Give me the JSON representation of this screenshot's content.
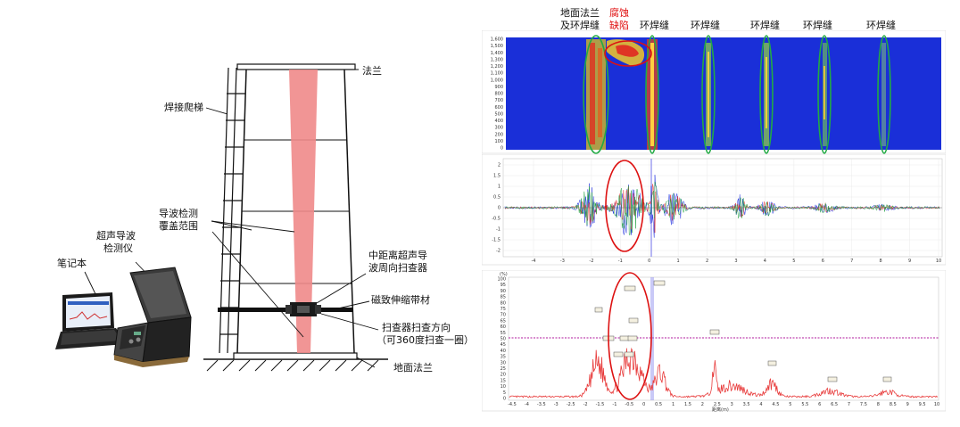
{
  "left_diagram": {
    "labels": {
      "flange_top": "法兰",
      "ladder": "焊接爬梯",
      "coverage_1": "导波检测",
      "coverage_2": "覆盖范围",
      "scanner_1": "中距离超声导",
      "scanner_2": "波周向扫查器",
      "strip": "磁致伸缩带材",
      "direction_1": "扫查器扫查方向",
      "direction_2": "（可360度扫查一圈）",
      "ground_flange": "地面法兰",
      "laptop": "笔记本",
      "instrument_1": "超声导波",
      "instrument_2": "检测仪"
    }
  },
  "right_panel": {
    "top_labels": {
      "ground_flange_1": "地面法兰",
      "ground_flange_2": "及环焊缝",
      "corrosion_1": "腐蚀",
      "corrosion_2": "缺陷",
      "weld_1": "环焊缝",
      "weld_2": "环焊缝",
      "weld_3": "环焊缝",
      "weld_4": "环焊缝",
      "weld_5": "环焊缝"
    },
    "heatmap": {
      "y_ticks": [
        "1,600",
        "1,500",
        "1,400",
        "1,300",
        "1,200",
        "1,100",
        "1,000",
        "900",
        "800",
        "700",
        "600",
        "500",
        "400",
        "300",
        "200",
        "100",
        "0"
      ]
    },
    "waveform": {
      "y_ticks": [
        "2",
        "1.5",
        "1",
        "0.5",
        "0",
        "-0.5",
        "-1",
        "-1.5",
        "-2"
      ],
      "x_ticks": [
        "-4",
        "-3",
        "-2",
        "-1",
        "0",
        "1",
        "2",
        "3",
        "4",
        "5",
        "6",
        "7",
        "8",
        "9",
        "10"
      ]
    },
    "amplitude": {
      "y_ticks": [
        "100",
        "95",
        "90",
        "85",
        "80",
        "75",
        "70",
        "65",
        "60",
        "55",
        "50",
        "45",
        "40",
        "35",
        "30",
        "25",
        "20",
        "15",
        "10",
        "5",
        "0"
      ],
      "x_ticks": [
        "-4.5",
        "-4",
        "-3.5",
        "-3",
        "-2.5",
        "-2",
        "-1.5",
        "-1",
        "-0.5",
        "0",
        "0.5",
        "1",
        "1.5",
        "2",
        "2.5",
        "3",
        "3.5",
        "4",
        "4.5",
        "5",
        "5.5",
        "6",
        "6.5",
        "7",
        "7.5",
        "8",
        "8.5",
        "9",
        "9.5",
        "10"
      ],
      "y_unit": "(%)",
      "x_unit": "距离(m)"
    }
  },
  "colors": {
    "coverage": "#f08a8a",
    "heatmap_bg": "#1a2fd8",
    "ellipse_green": "#22aa44",
    "ellipse_red": "#dd1111",
    "threshold": "#b0189c",
    "amp_line": "#e83b3b"
  }
}
